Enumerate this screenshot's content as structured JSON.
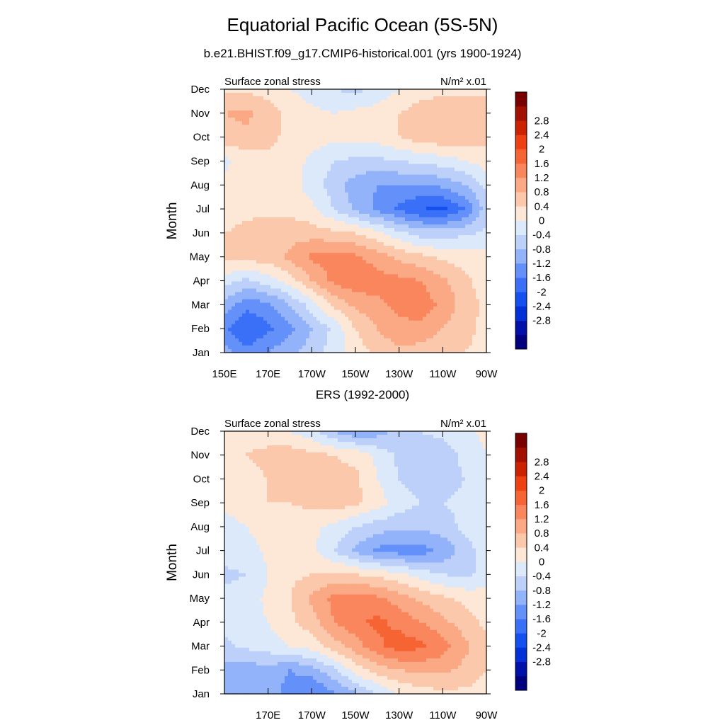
{
  "main_title": "Equatorial Pacific Ocean (5S-5N)",
  "subtitle": "b.e21.BHIST.f09_g17.CMIP6-historical.001 (yrs 1900-1924)",
  "colorbar": {
    "colors": [
      "#00007f",
      "#0010a8",
      "#0030d8",
      "#1450f0",
      "#3a70f8",
      "#6490fa",
      "#92b2fa",
      "#bcd0fa",
      "#dce9fb",
      "#fde8d8",
      "#fcc8ac",
      "#fba884",
      "#f9865d",
      "#f66434",
      "#ee4010",
      "#cc2200",
      "#a21000",
      "#7a0000"
    ],
    "labels": [
      "-2.8",
      "-2.4",
      "-2",
      "-1.6",
      "-1.2",
      "-0.8",
      "-0.4",
      "0",
      "0.4",
      "0.8",
      "1.2",
      "1.6",
      "2",
      "2.4",
      "2.8"
    ]
  },
  "chart_data": [
    {
      "type": "heatmap",
      "title": "",
      "left_label": "Surface zonal stress",
      "right_label": "N/m² x.01",
      "ylabel": "Month",
      "xlabel": "",
      "x_ticks": [
        "150E",
        "170E",
        "170W",
        "150W",
        "130W",
        "110W",
        "90W"
      ],
      "y_ticks": [
        "Jan",
        "Feb",
        "Mar",
        "Apr",
        "May",
        "Jun",
        "Jul",
        "Aug",
        "Sep",
        "Oct",
        "Nov",
        "Dec"
      ],
      "longitudes": [
        150,
        160,
        170,
        180,
        190,
        200,
        210,
        220,
        230,
        240,
        250,
        260,
        270
      ],
      "values": [
        [
          -1.0,
          -1.5,
          -1.2,
          -0.9,
          -0.6,
          -0.2,
          0.2,
          0.5,
          0.7,
          0.6,
          0.5,
          0.4,
          0.3
        ],
        [
          -1.5,
          -2.0,
          -1.7,
          -1.3,
          -0.8,
          -0.3,
          0.4,
          0.8,
          1.1,
          1.1,
          0.8,
          0.5,
          0.3
        ],
        [
          -0.9,
          -1.5,
          -1.3,
          -0.8,
          -0.2,
          0.5,
          0.9,
          1.1,
          1.3,
          1.4,
          1.1,
          0.6,
          0.3
        ],
        [
          -0.2,
          -0.5,
          -0.2,
          0.2,
          0.8,
          1.3,
          1.5,
          1.4,
          1.3,
          1.2,
          0.9,
          0.5,
          0.2
        ],
        [
          0.5,
          0.6,
          0.6,
          0.9,
          1.3,
          1.4,
          1.3,
          1.0,
          0.7,
          0.5,
          0.3,
          0.2,
          0.1
        ],
        [
          0.4,
          0.5,
          0.6,
          0.6,
          0.6,
          0.5,
          0.4,
          0.1,
          -0.3,
          -0.6,
          -0.6,
          -0.5,
          -0.3
        ],
        [
          0.2,
          0.3,
          0.3,
          0.3,
          0.1,
          -0.4,
          -0.9,
          -1.3,
          -1.7,
          -2.0,
          -2.1,
          -1.6,
          -0.6
        ],
        [
          0.1,
          0.2,
          0.3,
          0.2,
          -0.2,
          -0.6,
          -1.0,
          -1.2,
          -1.2,
          -1.2,
          -1.1,
          -0.8,
          -0.3
        ],
        [
          -0.1,
          0.2,
          0.3,
          0.2,
          -0.1,
          -0.4,
          -0.5,
          -0.5,
          -0.4,
          -0.3,
          -0.2,
          0.0,
          0.2
        ],
        [
          0.6,
          0.7,
          0.5,
          0.3,
          0.2,
          0.1,
          0.2,
          0.2,
          0.4,
          0.6,
          0.7,
          0.6,
          0.5
        ],
        [
          0.8,
          0.9,
          0.6,
          0.3,
          0.1,
          0.0,
          0.1,
          0.2,
          0.4,
          0.6,
          0.7,
          0.7,
          0.6
        ],
        [
          0.3,
          0.3,
          0.2,
          0.0,
          -0.2,
          -0.4,
          -0.5,
          -0.3,
          0.0,
          0.2,
          0.3,
          0.3,
          0.3
        ]
      ]
    },
    {
      "type": "heatmap",
      "title": "ERS (1992-2000)",
      "left_label": "Surface zonal stress",
      "right_label": "N/m² x.01",
      "ylabel": "Month",
      "xlabel": "",
      "x_ticks": [
        "170E",
        "170W",
        "150W",
        "130W",
        "110W",
        "90W"
      ],
      "y_ticks": [
        "Jan",
        "Feb",
        "Mar",
        "Apr",
        "May",
        "Jun",
        "Jul",
        "Aug",
        "Sep",
        "Oct",
        "Nov",
        "Dec"
      ],
      "longitudes": [
        150,
        160,
        170,
        180,
        190,
        200,
        210,
        220,
        230,
        240,
        250,
        260,
        270
      ],
      "values": [
        [
          -0.9,
          -1.0,
          -1.0,
          -1.4,
          -1.6,
          -1.3,
          -0.9,
          -0.4,
          0.0,
          0.2,
          0.3,
          0.3,
          0.2
        ],
        [
          -1.0,
          -1.1,
          -0.9,
          -1.2,
          -1.0,
          -0.5,
          0.2,
          0.6,
          0.8,
          0.9,
          0.9,
          0.7,
          0.4
        ],
        [
          -0.5,
          -0.3,
          -0.2,
          0.0,
          0.2,
          0.6,
          1.0,
          1.5,
          1.8,
          1.7,
          1.4,
          0.9,
          0.5
        ],
        [
          -0.3,
          -0.2,
          0.0,
          0.3,
          0.6,
          1.2,
          1.5,
          1.7,
          1.5,
          1.2,
          0.9,
          0.6,
          0.3
        ],
        [
          -0.3,
          -0.2,
          0.1,
          0.4,
          0.9,
          1.3,
          1.4,
          1.3,
          1.0,
          0.7,
          0.5,
          0.3,
          0.2
        ],
        [
          -0.5,
          -0.4,
          0.0,
          0.3,
          0.4,
          0.5,
          0.4,
          0.3,
          0.1,
          -0.2,
          -0.4,
          -0.5,
          -0.3
        ],
        [
          -0.2,
          -0.2,
          0.1,
          0.2,
          0.1,
          -0.4,
          -0.9,
          -1.3,
          -1.4,
          -1.4,
          -1.1,
          -0.6,
          -0.2
        ],
        [
          -0.2,
          0.0,
          0.2,
          0.2,
          0.1,
          -0.1,
          -0.4,
          -0.6,
          -0.7,
          -0.7,
          -0.6,
          -0.3,
          -0.1
        ],
        [
          0.1,
          0.3,
          0.4,
          0.4,
          0.5,
          0.6,
          0.5,
          0.2,
          -0.2,
          -0.4,
          -0.4,
          -0.3,
          -0.1
        ],
        [
          0.1,
          0.3,
          0.4,
          0.4,
          0.4,
          0.5,
          0.5,
          0.0,
          -0.4,
          -0.6,
          -0.6,
          -0.4,
          -0.2
        ],
        [
          0.3,
          0.4,
          0.5,
          0.6,
          0.5,
          0.4,
          0.3,
          -0.1,
          -0.5,
          -0.6,
          -0.6,
          -0.3,
          0.0
        ],
        [
          0.2,
          0.3,
          0.2,
          0.0,
          -0.3,
          -0.8,
          -1.2,
          -1.0,
          -0.6,
          -0.4,
          -0.3,
          -0.1,
          0.1
        ]
      ]
    }
  ]
}
